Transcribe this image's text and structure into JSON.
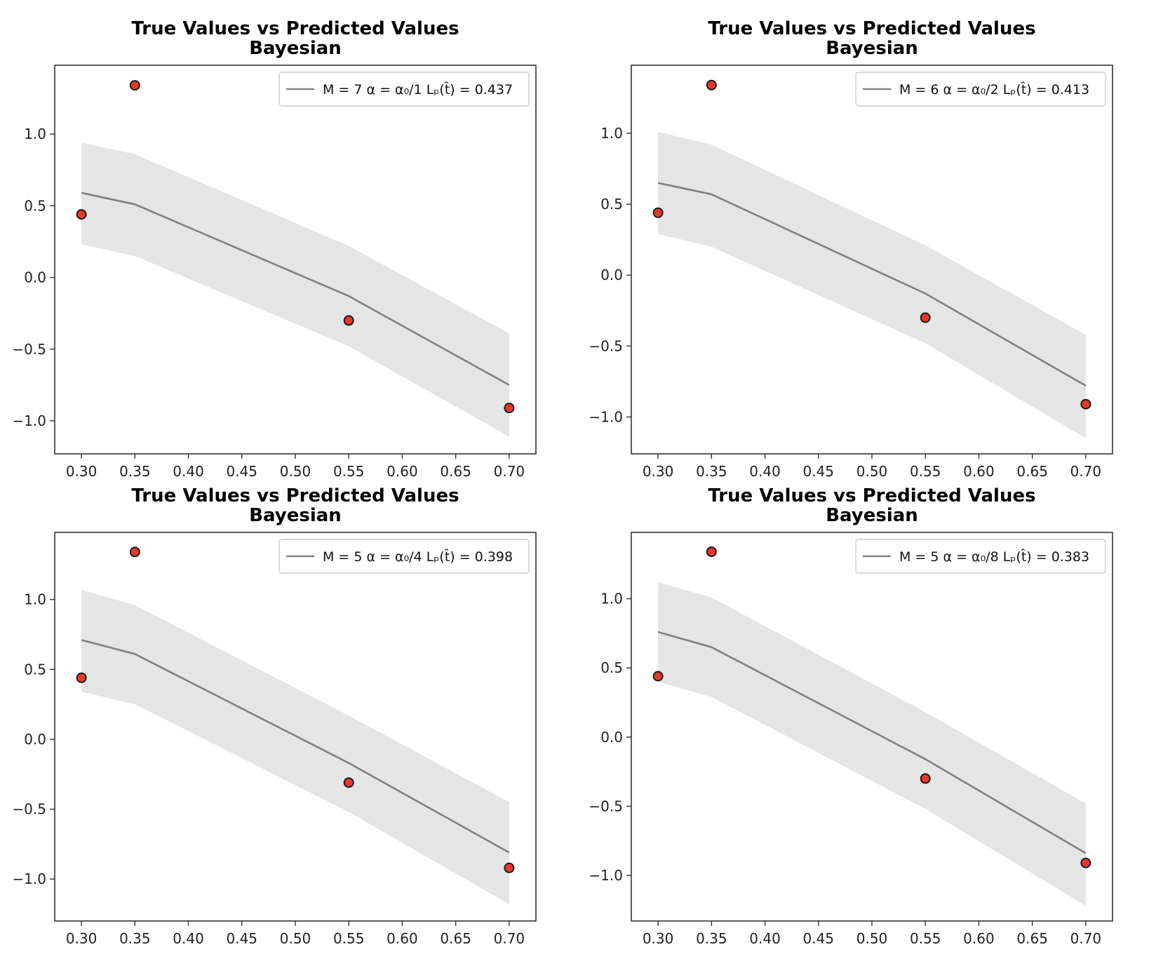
{
  "chart_data": [
    {
      "type": "line",
      "title": "True Values vs Predicted Values",
      "subtitle": "Bayesian",
      "xlim": [
        0.275,
        0.725
      ],
      "ylim": [
        -1.23,
        1.48
      ],
      "x_ticks": [
        "0.30",
        "0.35",
        "0.40",
        "0.45",
        "0.50",
        "0.55",
        "0.60",
        "0.65",
        "0.70"
      ],
      "y_ticks": [
        "1.0",
        "0.5",
        "0.0",
        "−0.5",
        "−1.0"
      ],
      "legend": "M = 7 α = α₀/1 Lₚ(t̂) = 0.437",
      "legend_position": "upper-right",
      "prediction": {
        "x": [
          0.3,
          0.35,
          0.55,
          0.7
        ],
        "mean": [
          0.59,
          0.51,
          -0.13,
          -0.75
        ],
        "lower": [
          0.23,
          0.15,
          -0.48,
          -1.11
        ],
        "upper": [
          0.94,
          0.86,
          0.22,
          -0.39
        ]
      },
      "true_values": {
        "x": [
          0.3,
          0.35,
          0.55,
          0.7
        ],
        "y": [
          0.44,
          1.34,
          -0.3,
          -0.91
        ]
      },
      "colors": {
        "line": "#808080",
        "band": "#e5e5e5",
        "point": "#e8382a",
        "point_edge": "#1a1a1a"
      }
    },
    {
      "type": "line",
      "title": "True Values vs Predicted Values",
      "subtitle": "Bayesian",
      "xlim": [
        0.275,
        0.725
      ],
      "ylim": [
        -1.26,
        1.48
      ],
      "x_ticks": [
        "0.30",
        "0.35",
        "0.40",
        "0.45",
        "0.50",
        "0.55",
        "0.60",
        "0.65",
        "0.70"
      ],
      "y_ticks": [
        "1.0",
        "0.5",
        "0.0",
        "−0.5",
        "−1.0"
      ],
      "legend": "M = 6 α = α₀/2 Lₚ(t̂) = 0.413",
      "legend_position": "upper-right",
      "prediction": {
        "x": [
          0.3,
          0.35,
          0.55,
          0.7
        ],
        "mean": [
          0.65,
          0.57,
          -0.13,
          -0.78
        ],
        "lower": [
          0.29,
          0.2,
          -0.48,
          -1.15
        ],
        "upper": [
          1.01,
          0.92,
          0.21,
          -0.42
        ]
      },
      "true_values": {
        "x": [
          0.3,
          0.35,
          0.55,
          0.7
        ],
        "y": [
          0.44,
          1.34,
          -0.3,
          -0.91
        ]
      },
      "colors": {
        "line": "#808080",
        "band": "#e5e5e5",
        "point": "#e8382a",
        "point_edge": "#1a1a1a"
      }
    },
    {
      "type": "line",
      "title": "True Values vs Predicted Values",
      "subtitle": "Bayesian",
      "xlim": [
        0.275,
        0.725
      ],
      "ylim": [
        -1.3,
        1.48
      ],
      "x_ticks": [
        "0.30",
        "0.35",
        "0.40",
        "0.45",
        "0.50",
        "0.55",
        "0.60",
        "0.65",
        "0.70"
      ],
      "y_ticks": [
        "1.0",
        "0.5",
        "0.0",
        "−0.5",
        "−1.0"
      ],
      "legend": "M = 5 α = α₀/4 Lₚ(t̂) = 0.398",
      "legend_position": "upper-right",
      "prediction": {
        "x": [
          0.3,
          0.35,
          0.55,
          0.7
        ],
        "mean": [
          0.71,
          0.61,
          -0.17,
          -0.81
        ],
        "lower": [
          0.34,
          0.25,
          -0.52,
          -1.18
        ],
        "upper": [
          1.07,
          0.96,
          0.17,
          -0.45
        ]
      },
      "true_values": {
        "x": [
          0.3,
          0.35,
          0.55,
          0.7
        ],
        "y": [
          0.44,
          1.34,
          -0.31,
          -0.92
        ]
      },
      "colors": {
        "line": "#808080",
        "band": "#e5e5e5",
        "point": "#e8382a",
        "point_edge": "#1a1a1a"
      }
    },
    {
      "type": "line",
      "title": "True Values vs Predicted Values",
      "subtitle": "Bayesian",
      "xlim": [
        0.275,
        0.725
      ],
      "ylim": [
        -1.33,
        1.48
      ],
      "x_ticks": [
        "0.30",
        "0.35",
        "0.40",
        "0.45",
        "0.50",
        "0.55",
        "0.60",
        "0.65",
        "0.70"
      ],
      "y_ticks": [
        "1.0",
        "0.5",
        "0.0",
        "−0.5",
        "−1.0"
      ],
      "legend": "M = 5 α = α₀/8 Lₚ(t̂) = 0.383",
      "legend_position": "upper-right",
      "prediction": {
        "x": [
          0.3,
          0.35,
          0.55,
          0.7
        ],
        "mean": [
          0.76,
          0.65,
          -0.16,
          -0.84
        ],
        "lower": [
          0.4,
          0.29,
          -0.52,
          -1.22
        ],
        "upper": [
          1.12,
          1.01,
          0.18,
          -0.48
        ]
      },
      "true_values": {
        "x": [
          0.3,
          0.35,
          0.55,
          0.7
        ],
        "y": [
          0.44,
          1.34,
          -0.3,
          -0.91
        ]
      },
      "colors": {
        "line": "#808080",
        "band": "#e5e5e5",
        "point": "#e8382a",
        "point_edge": "#1a1a1a"
      }
    }
  ]
}
